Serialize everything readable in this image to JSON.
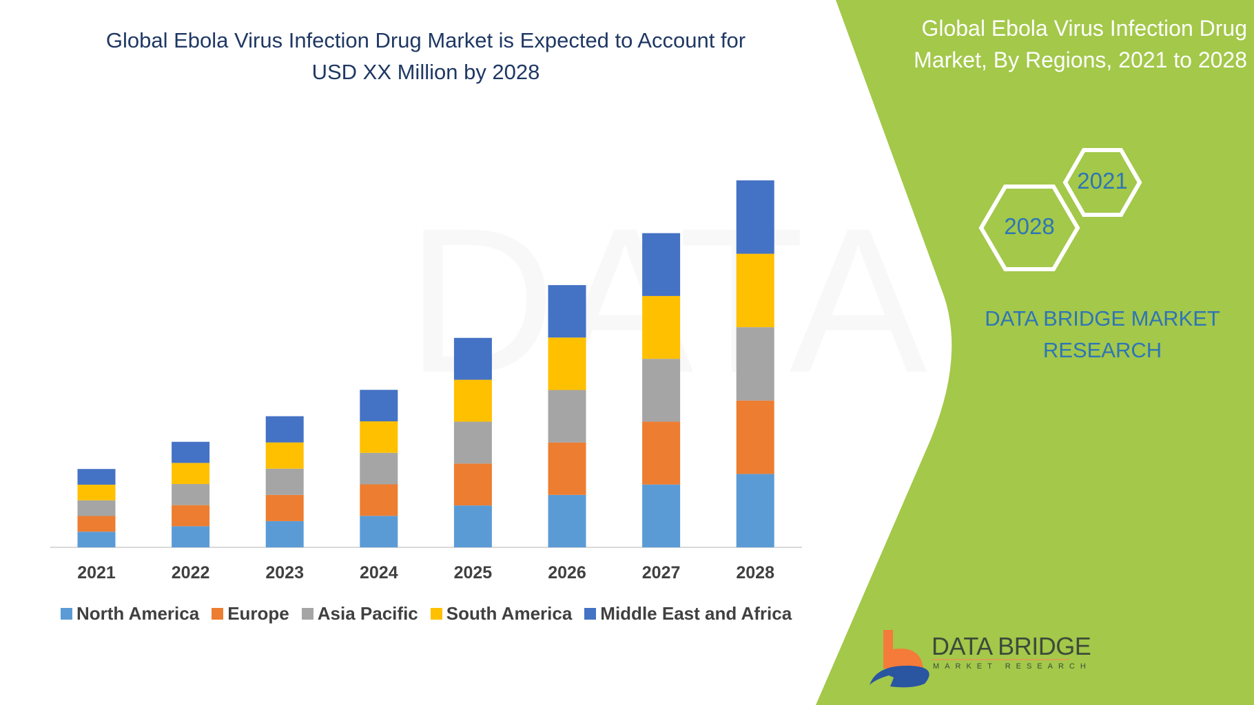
{
  "chart_data": {
    "type": "bar",
    "stacked": true,
    "title": "Global Ebola Virus Infection Drug Market is Expected to Account for USD XX Million by 2028",
    "xlabel": "",
    "ylabel": "",
    "y_axis_shown": false,
    "grid": false,
    "legend_position": "bottom",
    "categories": [
      "2021",
      "2022",
      "2023",
      "2024",
      "2025",
      "2026",
      "2027",
      "2028"
    ],
    "series": [
      {
        "name": "North America",
        "color": "#5b9bd5",
        "values": [
          19.6,
          26.4,
          32.8,
          39.4,
          52.4,
          65.6,
          78.6,
          91.8
        ]
      },
      {
        "name": "Europe",
        "color": "#ed7d31",
        "values": [
          19.6,
          26.4,
          32.8,
          39.4,
          52.4,
          65.6,
          78.6,
          91.8
        ]
      },
      {
        "name": "Asia Pacific",
        "color": "#a5a5a5",
        "values": [
          19.6,
          26.4,
          32.8,
          39.4,
          52.4,
          65.6,
          78.6,
          91.8
        ]
      },
      {
        "name": "South America",
        "color": "#ffc000",
        "values": [
          19.6,
          26.4,
          32.8,
          39.4,
          52.4,
          65.6,
          78.6,
          91.8
        ]
      },
      {
        "name": "Middle East and Africa",
        "color": "#4472c4",
        "values": [
          19.6,
          26.4,
          32.8,
          39.4,
          52.4,
          65.6,
          78.6,
          91.8
        ]
      }
    ]
  },
  "panel": {
    "title": "Global Ebola Virus Infection Drug Market, By Regions, 2021 to 2028",
    "hex_small": "2021",
    "hex_large": "2028",
    "company": "DATA BRIDGE MARKET RESEARCH",
    "color": "#a3c84a"
  },
  "logo": {
    "name": "DATA BRIDGE",
    "tagline": "MARKET RESEARCH"
  }
}
